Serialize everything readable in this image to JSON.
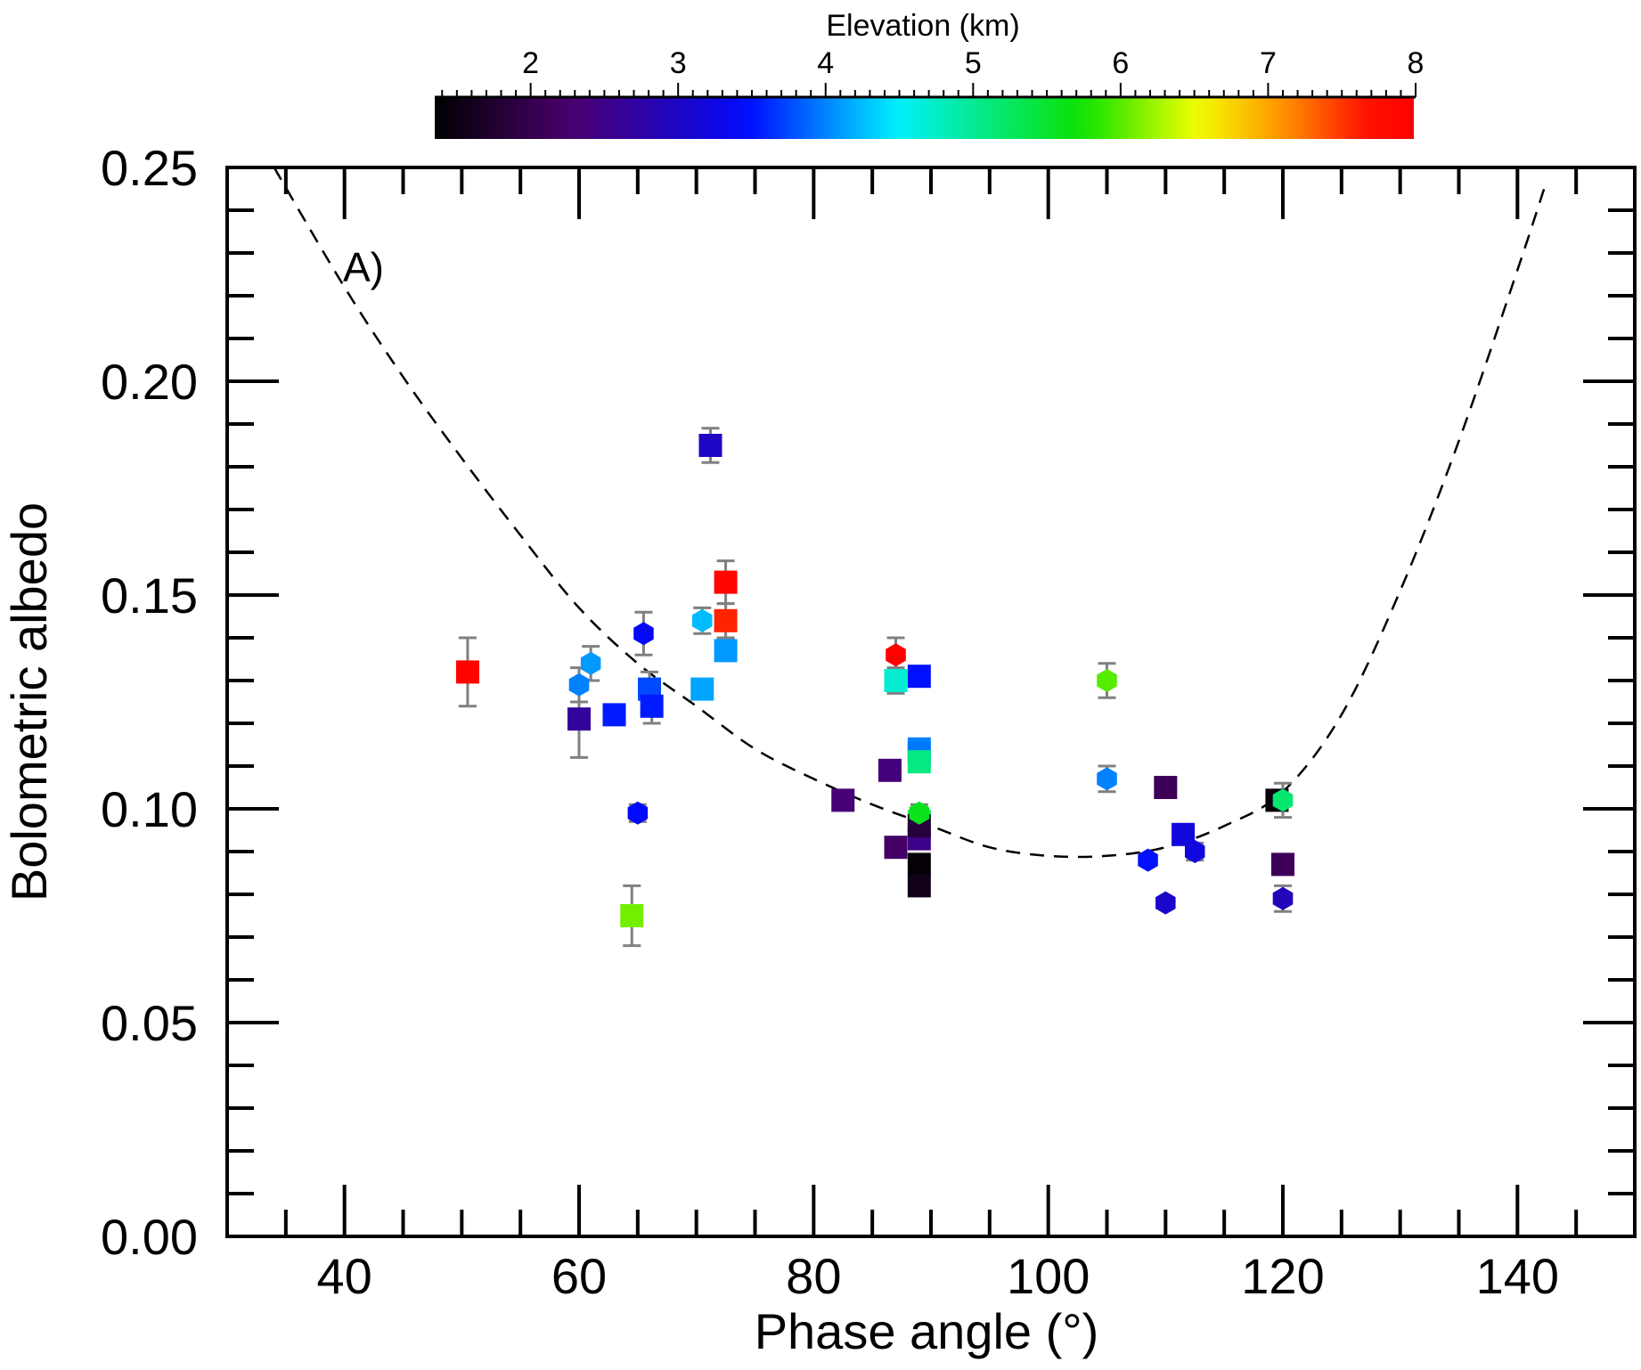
{
  "chart_data": {
    "type": "scatter",
    "panel_label": "A)",
    "xlabel": "Phase angle (°)",
    "ylabel": "Bolometric albedo",
    "xlim": [
      30,
      150
    ],
    "ylim": [
      0.0,
      0.25
    ],
    "x_ticks": [
      40,
      60,
      80,
      100,
      120,
      140
    ],
    "x_tick_labels": [
      "40",
      "60",
      "80",
      "100",
      "120",
      "140"
    ],
    "y_ticks": [
      0.0,
      0.05,
      0.1,
      0.15,
      0.2,
      0.25
    ],
    "y_tick_labels": [
      "0.00",
      "0.05",
      "0.10",
      "0.15",
      "0.20",
      "0.25"
    ],
    "colorbar": {
      "title": "Elevation (km)",
      "range": [
        1.35,
        8.0
      ],
      "ticks": [
        2,
        3,
        4,
        5,
        6,
        7,
        8
      ],
      "tick_labels": [
        "2",
        "3",
        "4",
        "5",
        "6",
        "7",
        "8"
      ]
    },
    "error_bar_color": "#808080",
    "fit_curve": {
      "style": "dashed",
      "x": [
        34,
        40,
        45,
        50,
        55,
        60,
        65,
        70,
        75,
        80,
        85,
        90,
        95,
        100,
        105,
        110,
        115,
        120,
        125,
        130,
        135,
        140,
        142.5
      ],
      "y": [
        0.25,
        0.222,
        0.201,
        0.182,
        0.164,
        0.147,
        0.134,
        0.124,
        0.114,
        0.107,
        0.101,
        0.096,
        0.091,
        0.089,
        0.089,
        0.091,
        0.096,
        0.104,
        0.122,
        0.151,
        0.186,
        0.226,
        0.247
      ]
    },
    "series": [
      {
        "name": "squares",
        "marker": "square",
        "points": [
          {
            "x": 50.5,
            "y": 0.132,
            "err": 0.008,
            "elev": 7.95
          },
          {
            "x": 60.0,
            "y": 0.121,
            "err": 0.009,
            "elev": 2.65
          },
          {
            "x": 63.0,
            "y": 0.122,
            "err": 0.0,
            "elev": 3.55
          },
          {
            "x": 64.5,
            "y": 0.075,
            "err": 0.007,
            "elev": 6.1
          },
          {
            "x": 66.0,
            "y": 0.128,
            "err": 0.004,
            "elev": 3.75
          },
          {
            "x": 66.2,
            "y": 0.124,
            "err": 0.004,
            "elev": 3.55
          },
          {
            "x": 70.5,
            "y": 0.128,
            "err": 0.0,
            "elev": 4.15
          },
          {
            "x": 71.2,
            "y": 0.185,
            "err": 0.004,
            "elev": 3.0
          },
          {
            "x": 72.5,
            "y": 0.153,
            "err": 0.005,
            "elev": 7.9
          },
          {
            "x": 72.5,
            "y": 0.144,
            "err": 0.004,
            "elev": 7.6
          },
          {
            "x": 72.5,
            "y": 0.137,
            "err": 0.0,
            "elev": 4.1
          },
          {
            "x": 82.5,
            "y": 0.102,
            "err": 0.0,
            "elev": 2.35
          },
          {
            "x": 86.5,
            "y": 0.109,
            "err": 0.0,
            "elev": 2.4
          },
          {
            "x": 87.0,
            "y": 0.13,
            "err": 0.003,
            "elev": 4.7
          },
          {
            "x": 87.0,
            "y": 0.091,
            "err": 0.0,
            "elev": 2.2
          },
          {
            "x": 89.0,
            "y": 0.131,
            "err": 0.0,
            "elev": 3.5
          },
          {
            "x": 89.0,
            "y": 0.114,
            "err": 0.0,
            "elev": 4.0
          },
          {
            "x": 89.0,
            "y": 0.113,
            "err": 0.0,
            "elev": 3.95
          },
          {
            "x": 89.0,
            "y": 0.111,
            "err": 0.0,
            "elev": 5.1
          },
          {
            "x": 89.0,
            "y": 0.097,
            "err": 0.0,
            "elev": 5.3
          },
          {
            "x": 89.0,
            "y": 0.093,
            "err": 0.0,
            "elev": 2.5
          },
          {
            "x": 89.0,
            "y": 0.096,
            "err": 0.0,
            "elev": 1.85
          },
          {
            "x": 89.0,
            "y": 0.087,
            "err": 0.0,
            "elev": 1.4
          },
          {
            "x": 89.0,
            "y": 0.082,
            "err": 0.0,
            "elev": 1.55
          },
          {
            "x": 110.0,
            "y": 0.105,
            "err": 0.0,
            "elev": 2.1
          },
          {
            "x": 111.5,
            "y": 0.094,
            "err": 0.0,
            "elev": 3.2
          },
          {
            "x": 119.5,
            "y": 0.102,
            "err": 0.0,
            "elev": 1.45
          },
          {
            "x": 120.0,
            "y": 0.087,
            "err": 0.0,
            "elev": 2.1
          }
        ]
      },
      {
        "name": "hexagons",
        "marker": "hexagon",
        "points": [
          {
            "x": 60.0,
            "y": 0.129,
            "err": 0.004,
            "elev": 4.0
          },
          {
            "x": 61.0,
            "y": 0.134,
            "err": 0.004,
            "elev": 4.1
          },
          {
            "x": 65.0,
            "y": 0.099,
            "err": 0.002,
            "elev": 3.45
          },
          {
            "x": 65.5,
            "y": 0.141,
            "err": 0.005,
            "elev": 3.4
          },
          {
            "x": 70.5,
            "y": 0.144,
            "err": 0.003,
            "elev": 4.25
          },
          {
            "x": 87.0,
            "y": 0.136,
            "err": 0.004,
            "elev": 8.0
          },
          {
            "x": 89.0,
            "y": 0.099,
            "err": 0.002,
            "elev": 5.6
          },
          {
            "x": 105.0,
            "y": 0.107,
            "err": 0.003,
            "elev": 4.0
          },
          {
            "x": 105.0,
            "y": 0.13,
            "err": 0.004,
            "elev": 6.0
          },
          {
            "x": 108.5,
            "y": 0.088,
            "err": 0.0,
            "elev": 3.5
          },
          {
            "x": 110.0,
            "y": 0.078,
            "err": 0.0,
            "elev": 3.05
          },
          {
            "x": 112.5,
            "y": 0.09,
            "err": 0.002,
            "elev": 3.2
          },
          {
            "x": 120.0,
            "y": 0.102,
            "err": 0.004,
            "elev": 5.2
          },
          {
            "x": 120.0,
            "y": 0.079,
            "err": 0.003,
            "elev": 2.9
          }
        ]
      }
    ]
  }
}
